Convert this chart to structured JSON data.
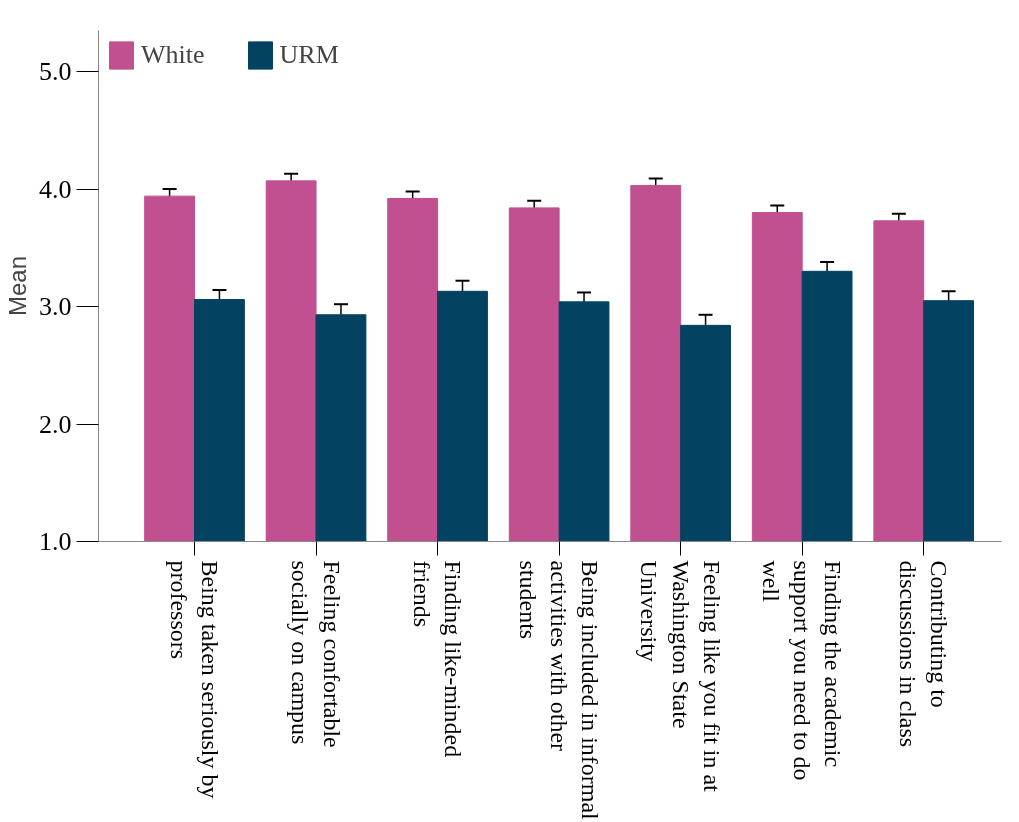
{
  "chart_data": {
    "type": "bar",
    "ylabel": "Mean",
    "categories": [
      "Being taken seriously by professors",
      "Feeling confortable socially on campus",
      "Finding like-minded friends",
      "Being included in informal activities with other students",
      "Feeling like you fit in at Washington State University",
      "Finding the academic support you need to do well",
      "Contributing to discussions in class"
    ],
    "series": [
      {
        "name": "White",
        "color": "#c0508f",
        "values": [
          3.94,
          4.07,
          3.92,
          3.84,
          4.03,
          3.8,
          3.73
        ],
        "errors": [
          0.06,
          0.06,
          0.06,
          0.06,
          0.06,
          0.06,
          0.06
        ]
      },
      {
        "name": "URM",
        "color": "#034260",
        "values": [
          3.06,
          2.93,
          3.13,
          3.04,
          2.84,
          3.3,
          3.05
        ],
        "errors": [
          0.08,
          0.09,
          0.09,
          0.08,
          0.09,
          0.08,
          0.08
        ]
      }
    ],
    "ylim": [
      1,
      5.35
    ],
    "yticks": [
      {
        "value": 1,
        "label": "1.0"
      },
      {
        "value": 2,
        "label": "2.0"
      },
      {
        "value": 3,
        "label": "3.0"
      },
      {
        "value": 4,
        "label": "4.0"
      },
      {
        "value": 5,
        "label": "5.0"
      }
    ],
    "grid": false,
    "legend": "top left"
  }
}
